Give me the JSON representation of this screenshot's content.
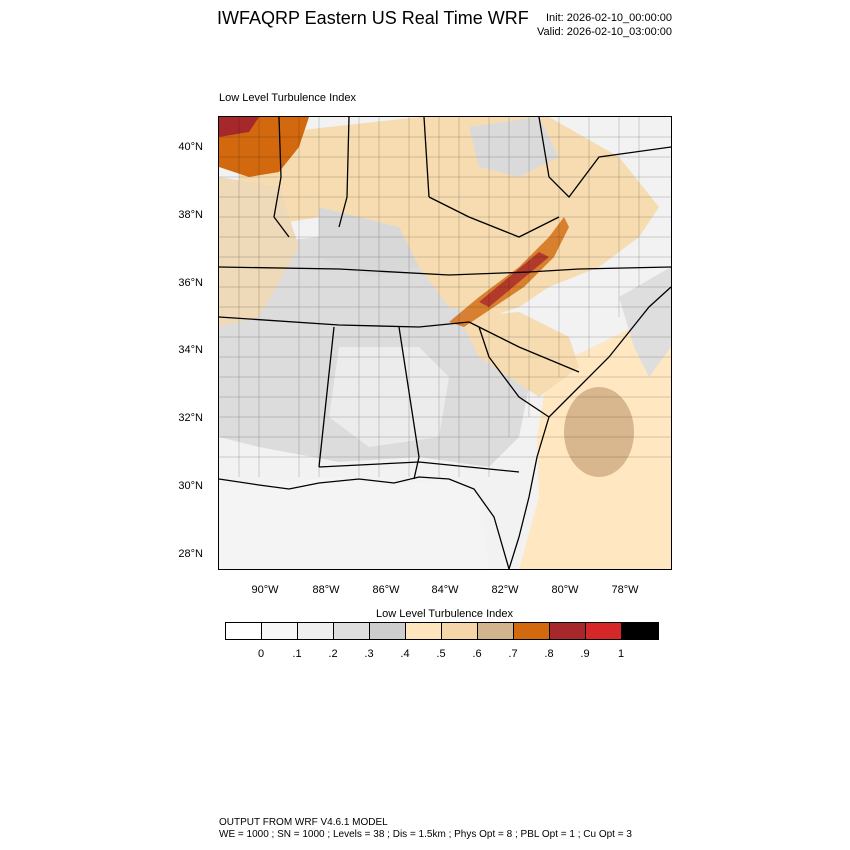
{
  "header": {
    "title": "IWFAQRP Eastern US Real Time WRF",
    "init": "Init: 2026-02-10_00:00:00",
    "valid": "Valid: 2026-02-10_03:00:00"
  },
  "map": {
    "title": "Low Level Turbulence Index",
    "lat_labels": [
      "40°N",
      "38°N",
      "36°N",
      "34°N",
      "32°N",
      "30°N",
      "28°N"
    ],
    "lon_labels": [
      "90°W",
      "88°W",
      "86°W",
      "84°W",
      "82°W",
      "80°W",
      "78°W"
    ]
  },
  "colorbar": {
    "title": "Low Level Turbulence Index",
    "colors": [
      "#ffffff",
      "#f7f7f7",
      "#efefef",
      "#dedede",
      "#cdcdcd",
      "#ffe5bd",
      "#f5d6a8",
      "#d2b48c",
      "#d2690f",
      "#a7282b",
      "#d62728",
      "#000000"
    ],
    "labels": [
      "0",
      ".1",
      ".2",
      ".3",
      ".4",
      ".5",
      ".6",
      ".7",
      ".8",
      ".9",
      "1"
    ]
  },
  "footer": {
    "line1": "OUTPUT FROM WRF V4.6.1 MODEL",
    "line2": "WE = 1000 ; SN = 1000 ; Levels = 38 ; Dis = 1.5km ; Phys Opt = 8 ; PBL Opt = 1 ; Cu Opt = 3"
  }
}
